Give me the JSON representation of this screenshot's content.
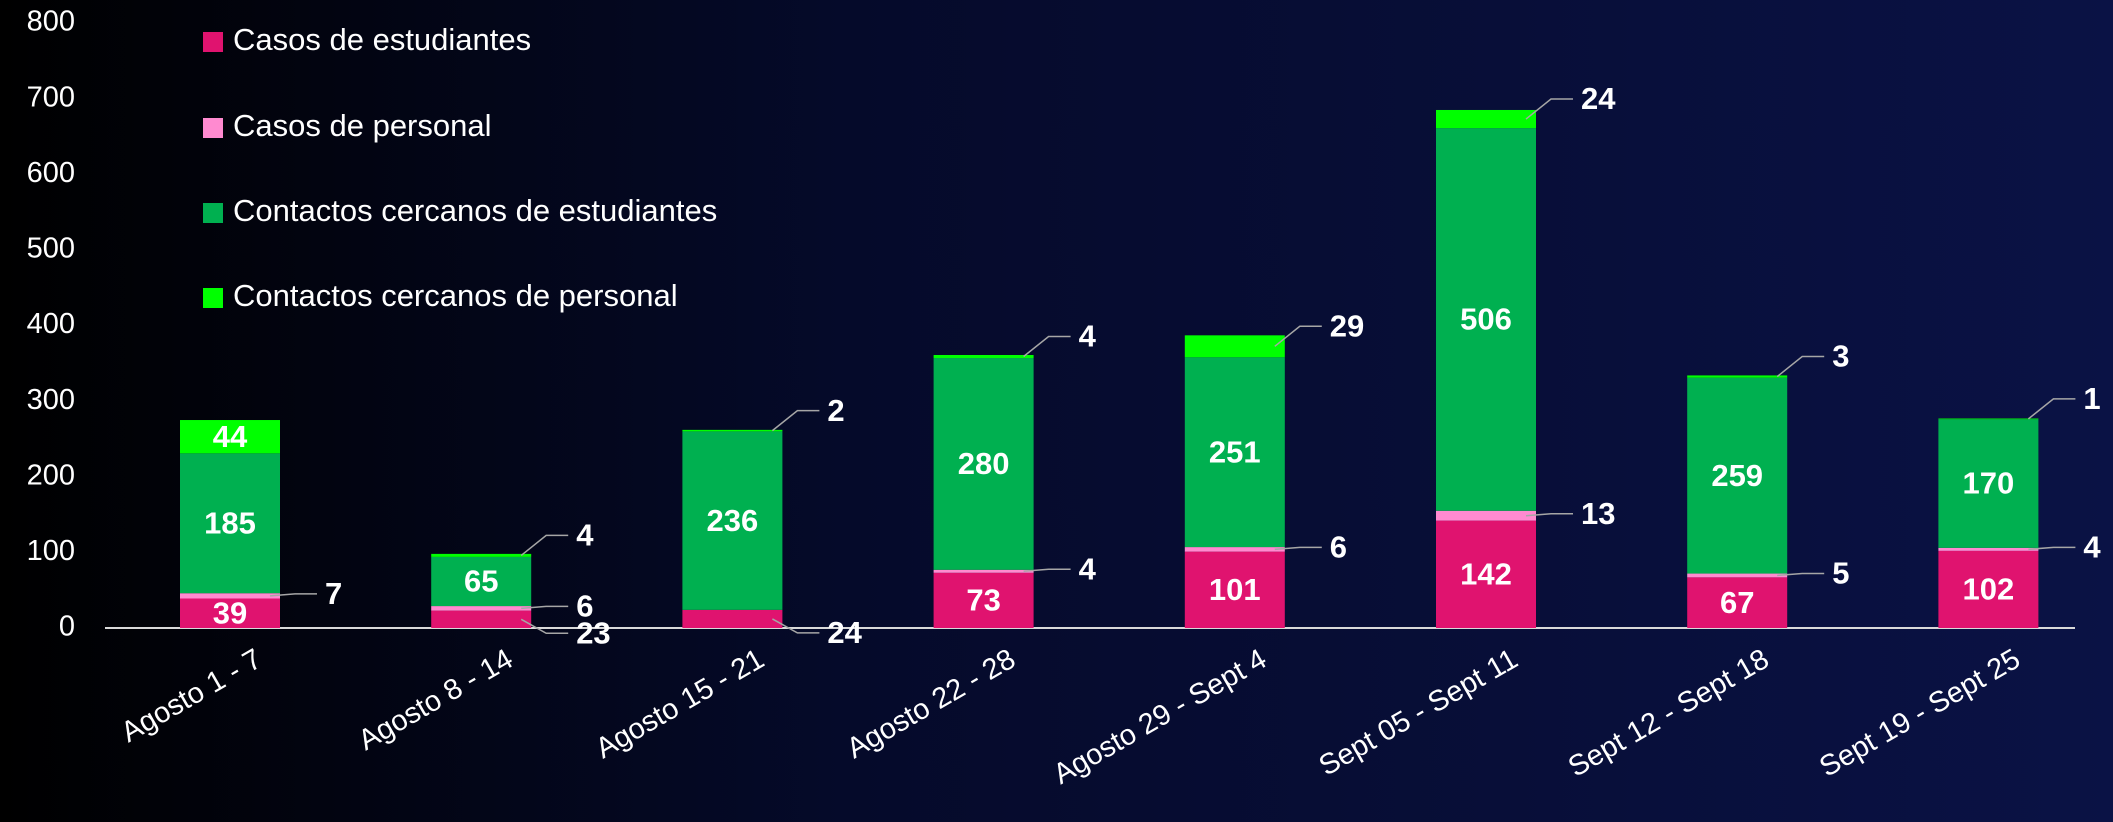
{
  "chart_data": {
    "type": "stacked_bar",
    "categories": [
      "Agosto 1 - 7",
      "Agosto 8 - 14",
      "Agosto 15 - 21",
      "Agosto 22 - 28",
      "Agosto 29 - Sept 4",
      "Sept 05 - Sept 11",
      "Sept 12 - Sept 18",
      "Sept 19 - Sept 25"
    ],
    "series": [
      {
        "name": "Casos de estudiantes",
        "color": "#e0136f",
        "values": [
          39,
          23,
          24,
          73,
          101,
          142,
          67,
          102
        ]
      },
      {
        "name": "Casos de personal",
        "color": "#ff8ad0",
        "values": [
          7,
          6,
          null,
          4,
          6,
          13,
          5,
          4
        ]
      },
      {
        "name": "Contactos cercanos de estudiantes",
        "color": "#00b050",
        "values": [
          185,
          65,
          236,
          280,
          251,
          506,
          259,
          170
        ]
      },
      {
        "name": "Contactos cercanos de personal",
        "color": "#00ff00",
        "values": [
          44,
          4,
          2,
          4,
          29,
          24,
          3,
          1
        ]
      }
    ],
    "ylim": [
      0,
      800
    ],
    "yticks": [
      0,
      100,
      200,
      300,
      400,
      500,
      600,
      700,
      800
    ],
    "grid": false,
    "legend": "top-left"
  }
}
